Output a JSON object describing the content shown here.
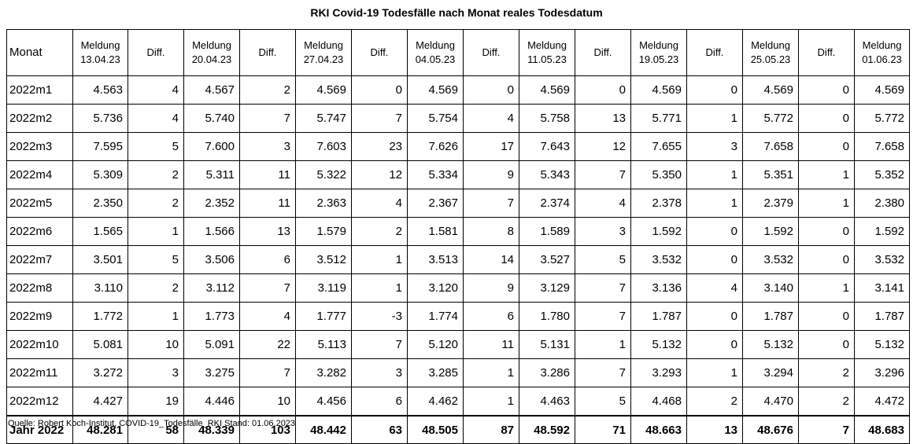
{
  "title": "RKI Covid-19 Todesfälle nach Monat reales Todesdatum",
  "header": {
    "month": "Monat",
    "meldung_label": "Meldung",
    "diff_label": "Diff.",
    "dates": [
      "13.04.23",
      "20.04.23",
      "27.04.23",
      "04.05.23",
      "11.05.23",
      "19.05.23",
      "25.05.23",
      "01.06.23"
    ]
  },
  "rows": [
    {
      "month": "2022m1",
      "values": [
        "4.563",
        "4",
        "4.567",
        "2",
        "4.569",
        "0",
        "4.569",
        "0",
        "4.569",
        "0",
        "4.569",
        "0",
        "4.569",
        "0",
        "4.569"
      ]
    },
    {
      "month": "2022m2",
      "values": [
        "5.736",
        "4",
        "5.740",
        "7",
        "5.747",
        "7",
        "5.754",
        "4",
        "5.758",
        "13",
        "5.771",
        "1",
        "5.772",
        "0",
        "5.772"
      ]
    },
    {
      "month": "2022m3",
      "values": [
        "7.595",
        "5",
        "7.600",
        "3",
        "7.603",
        "23",
        "7.626",
        "17",
        "7.643",
        "12",
        "7.655",
        "3",
        "7.658",
        "0",
        "7.658"
      ]
    },
    {
      "month": "2022m4",
      "values": [
        "5.309",
        "2",
        "5.311",
        "11",
        "5.322",
        "12",
        "5.334",
        "9",
        "5.343",
        "7",
        "5.350",
        "1",
        "5.351",
        "1",
        "5.352"
      ]
    },
    {
      "month": "2022m5",
      "values": [
        "2.350",
        "2",
        "2.352",
        "11",
        "2.363",
        "4",
        "2.367",
        "7",
        "2.374",
        "4",
        "2.378",
        "1",
        "2.379",
        "1",
        "2.380"
      ]
    },
    {
      "month": "2022m6",
      "values": [
        "1.565",
        "1",
        "1.566",
        "13",
        "1.579",
        "2",
        "1.581",
        "8",
        "1.589",
        "3",
        "1.592",
        "0",
        "1.592",
        "0",
        "1.592"
      ]
    },
    {
      "month": "2022m7",
      "values": [
        "3.501",
        "5",
        "3.506",
        "6",
        "3.512",
        "1",
        "3.513",
        "14",
        "3.527",
        "5",
        "3.532",
        "0",
        "3.532",
        "0",
        "3.532"
      ]
    },
    {
      "month": "2022m8",
      "values": [
        "3.110",
        "2",
        "3.112",
        "7",
        "3.119",
        "1",
        "3.120",
        "9",
        "3.129",
        "7",
        "3.136",
        "4",
        "3.140",
        "1",
        "3.141"
      ]
    },
    {
      "month": "2022m9",
      "values": [
        "1.772",
        "1",
        "1.773",
        "4",
        "1.777",
        "-3",
        "1.774",
        "6",
        "1.780",
        "7",
        "1.787",
        "0",
        "1.787",
        "0",
        "1.787"
      ]
    },
    {
      "month": "2022m10",
      "values": [
        "5.081",
        "10",
        "5.091",
        "22",
        "5.113",
        "7",
        "5.120",
        "11",
        "5.131",
        "1",
        "5.132",
        "0",
        "5.132",
        "0",
        "5.132"
      ]
    },
    {
      "month": "2022m11",
      "values": [
        "3.272",
        "3",
        "3.275",
        "7",
        "3.282",
        "3",
        "3.285",
        "1",
        "3.286",
        "7",
        "3.293",
        "1",
        "3.294",
        "2",
        "3.296"
      ]
    },
    {
      "month": "2022m12",
      "values": [
        "4.427",
        "19",
        "4.446",
        "10",
        "4.456",
        "6",
        "4.462",
        "1",
        "4.463",
        "5",
        "4.468",
        "2",
        "4.470",
        "2",
        "4.472"
      ]
    }
  ],
  "total": {
    "month": "Jahr 2022",
    "values": [
      "48.281",
      "58",
      "48.339",
      "103",
      "48.442",
      "63",
      "48.505",
      "87",
      "48.592",
      "71",
      "48.663",
      "13",
      "48.676",
      "7",
      "48.683"
    ]
  },
  "source": "Quelle: Robert Koch-Institut, COVID-19_Todesfälle_RKI Stand: 01.06.2023"
}
